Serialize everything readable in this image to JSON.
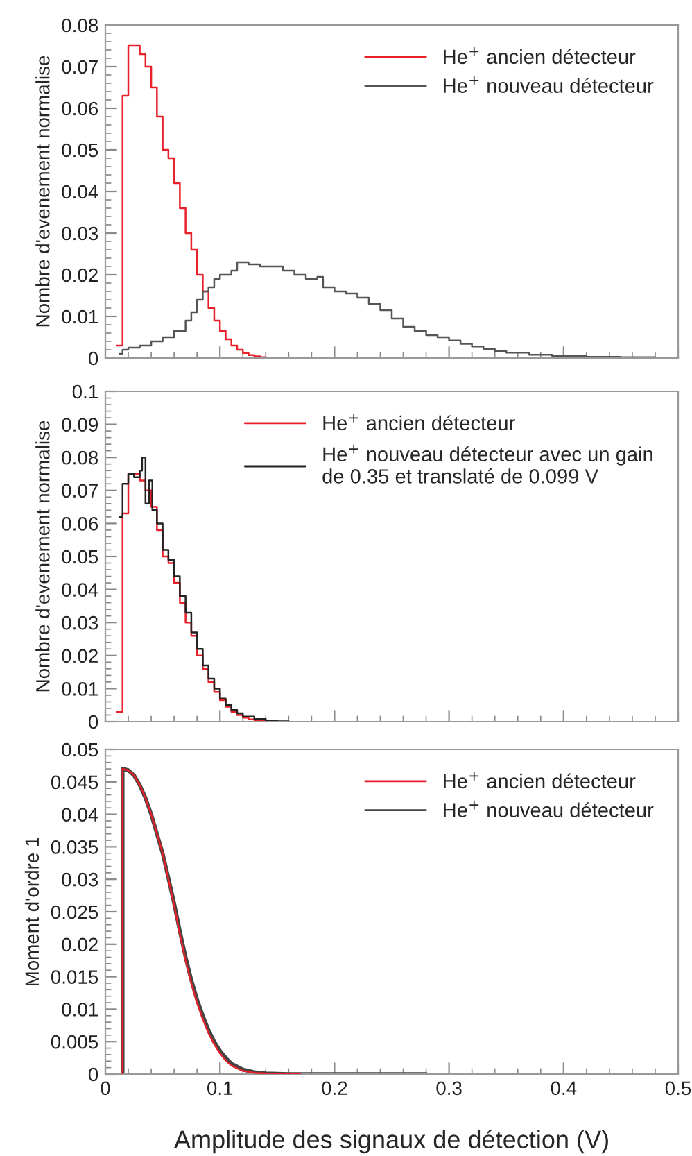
{
  "chart_data": [
    {
      "type": "step",
      "ylabel": "Nombre d'evenement normalise",
      "xlim": [
        0,
        0.5
      ],
      "xticks": [
        0,
        0.1,
        0.2,
        0.3,
        0.4,
        0.5
      ],
      "ylim": [
        0,
        0.08
      ],
      "yticks": [
        0,
        0.01,
        0.02,
        0.03,
        0.04,
        0.05,
        0.06,
        0.07,
        0.08
      ],
      "tick_labels": "y",
      "legend": "top right",
      "grid": false,
      "series": [
        {
          "name": "He$^{+}$ ancien détecteur",
          "color": "#e8202a",
          "x": [
            0.01,
            0.015,
            0.02,
            0.025,
            0.03,
            0.035,
            0.04,
            0.045,
            0.05,
            0.055,
            0.06,
            0.065,
            0.07,
            0.075,
            0.08,
            0.085,
            0.09,
            0.095,
            0.1,
            0.105,
            0.11,
            0.115,
            0.12,
            0.125,
            0.13,
            0.135,
            0.14,
            0.145
          ],
          "values": [
            0.003,
            0.063,
            0.075,
            0.075,
            0.073,
            0.07,
            0.065,
            0.058,
            0.05,
            0.048,
            0.042,
            0.036,
            0.03,
            0.026,
            0.02,
            0.016,
            0.012,
            0.009,
            0.0065,
            0.0045,
            0.003,
            0.002,
            0.0012,
            0.0007,
            0.0004,
            0.0002,
            0.0001,
            0
          ]
        },
        {
          "name": "He$^{+}$ nouveau détecteur",
          "color": "#555555",
          "x": [
            0.0125,
            0.015,
            0.02,
            0.03,
            0.04,
            0.05,
            0.06,
            0.07,
            0.075,
            0.08,
            0.085,
            0.09,
            0.095,
            0.1,
            0.11,
            0.115,
            0.125,
            0.135,
            0.145,
            0.155,
            0.165,
            0.175,
            0.185,
            0.19,
            0.2,
            0.21,
            0.22,
            0.23,
            0.24,
            0.25,
            0.26,
            0.27,
            0.28,
            0.29,
            0.3,
            0.31,
            0.32,
            0.33,
            0.34,
            0.35,
            0.37,
            0.39,
            0.42,
            0.45,
            0.48,
            0.5
          ],
          "values": [
            0.001,
            0.002,
            0.0025,
            0.003,
            0.004,
            0.005,
            0.0065,
            0.009,
            0.011,
            0.014,
            0.016,
            0.017,
            0.019,
            0.02,
            0.021,
            0.023,
            0.0225,
            0.022,
            0.022,
            0.021,
            0.02,
            0.019,
            0.0195,
            0.017,
            0.016,
            0.0155,
            0.0145,
            0.013,
            0.0115,
            0.0095,
            0.0075,
            0.0065,
            0.0055,
            0.005,
            0.0042,
            0.0034,
            0.0028,
            0.0022,
            0.0017,
            0.0013,
            0.0008,
            0.0005,
            0.0003,
            0.0002,
            0.0001,
            0
          ]
        }
      ]
    },
    {
      "type": "step",
      "ylabel": "Nombre d'evenement normalise",
      "xlim": [
        0,
        0.5
      ],
      "xticks": [
        0,
        0.1,
        0.2,
        0.3,
        0.4,
        0.5
      ],
      "ylim": [
        0,
        0.1
      ],
      "yticks": [
        0,
        0.01,
        0.02,
        0.03,
        0.04,
        0.05,
        0.06,
        0.07,
        0.08,
        0.09,
        0.1
      ],
      "tick_labels": "y",
      "legend": "top right",
      "grid": false,
      "series": [
        {
          "name": "He$^{+}$ ancien détecteur",
          "color": "#e8202a",
          "x": [
            0.01,
            0.015,
            0.02,
            0.025,
            0.03,
            0.035,
            0.04,
            0.045,
            0.05,
            0.055,
            0.06,
            0.065,
            0.07,
            0.075,
            0.08,
            0.085,
            0.09,
            0.095,
            0.1,
            0.105,
            0.11,
            0.115,
            0.12,
            0.125,
            0.13,
            0.135,
            0.14,
            0.145
          ],
          "values": [
            0.003,
            0.063,
            0.075,
            0.075,
            0.073,
            0.07,
            0.065,
            0.058,
            0.05,
            0.048,
            0.042,
            0.036,
            0.03,
            0.026,
            0.02,
            0.016,
            0.012,
            0.009,
            0.0065,
            0.0045,
            0.003,
            0.002,
            0.0012,
            0.0007,
            0.0004,
            0.0002,
            0.0001,
            0
          ]
        },
        {
          "name": "He$^{+}$ nouveau détecteur avec un gain\nde 0.35 et translaté de 0.099 V",
          "color": "#222222",
          "x": [
            0.0125,
            0.015,
            0.02,
            0.025,
            0.03,
            0.032,
            0.035,
            0.038,
            0.041,
            0.045,
            0.05,
            0.055,
            0.06,
            0.065,
            0.07,
            0.075,
            0.08,
            0.085,
            0.09,
            0.095,
            0.1,
            0.105,
            0.11,
            0.115,
            0.12,
            0.13,
            0.14,
            0.15,
            0.16
          ],
          "values": [
            0.062,
            0.072,
            0.075,
            0.074,
            0.076,
            0.08,
            0.066,
            0.073,
            0.064,
            0.06,
            0.052,
            0.049,
            0.044,
            0.038,
            0.033,
            0.027,
            0.022,
            0.017,
            0.013,
            0.01,
            0.007,
            0.005,
            0.0035,
            0.0025,
            0.0015,
            0.0008,
            0.0003,
            0.0001,
            0
          ]
        }
      ]
    },
    {
      "type": "line",
      "ylabel": "Moment d'ordre 1",
      "xlabel": "Amplitude des signaux de détection (V)",
      "xlim": [
        0,
        0.5
      ],
      "xticks": [
        0,
        0.1,
        0.2,
        0.3,
        0.4,
        0.5
      ],
      "ylim": [
        0,
        0.05
      ],
      "yticks": [
        0,
        0.005,
        0.01,
        0.015,
        0.02,
        0.025,
        0.03,
        0.035,
        0.04,
        0.045,
        0.05
      ],
      "legend": "top right",
      "grid": false,
      "series": [
        {
          "name": "He$^{+}$ ancien détecteur",
          "color": "#e8202a",
          "x": [
            0.015,
            0.015,
            0.02,
            0.025,
            0.03,
            0.035,
            0.04,
            0.045,
            0.05,
            0.055,
            0.06,
            0.065,
            0.07,
            0.075,
            0.08,
            0.085,
            0.09,
            0.095,
            0.1,
            0.105,
            0.11,
            0.12,
            0.13,
            0.14,
            0.16,
            0.17
          ],
          "values": [
            0,
            0.047,
            0.0468,
            0.046,
            0.0445,
            0.0425,
            0.04,
            0.037,
            0.034,
            0.03,
            0.026,
            0.0215,
            0.0175,
            0.014,
            0.011,
            0.0085,
            0.0063,
            0.0046,
            0.0032,
            0.0021,
            0.0013,
            0.0005,
            0.0002,
            0.0001,
            0,
            0
          ]
        },
        {
          "name": "He$^{+}$ nouveau détecteur",
          "color": "#444444",
          "x": [
            0.015,
            0.015,
            0.02,
            0.025,
            0.03,
            0.035,
            0.04,
            0.045,
            0.05,
            0.055,
            0.06,
            0.065,
            0.07,
            0.075,
            0.08,
            0.085,
            0.09,
            0.095,
            0.1,
            0.105,
            0.11,
            0.12,
            0.13,
            0.14,
            0.16,
            0.28
          ],
          "values": [
            0,
            0.047,
            0.0468,
            0.046,
            0.0445,
            0.0425,
            0.04,
            0.037,
            0.034,
            0.0302,
            0.0263,
            0.022,
            0.018,
            0.0145,
            0.0115,
            0.009,
            0.0068,
            0.005,
            0.0036,
            0.0025,
            0.0016,
            0.0007,
            0.0003,
            0.0001,
            0,
            0
          ]
        }
      ]
    }
  ]
}
